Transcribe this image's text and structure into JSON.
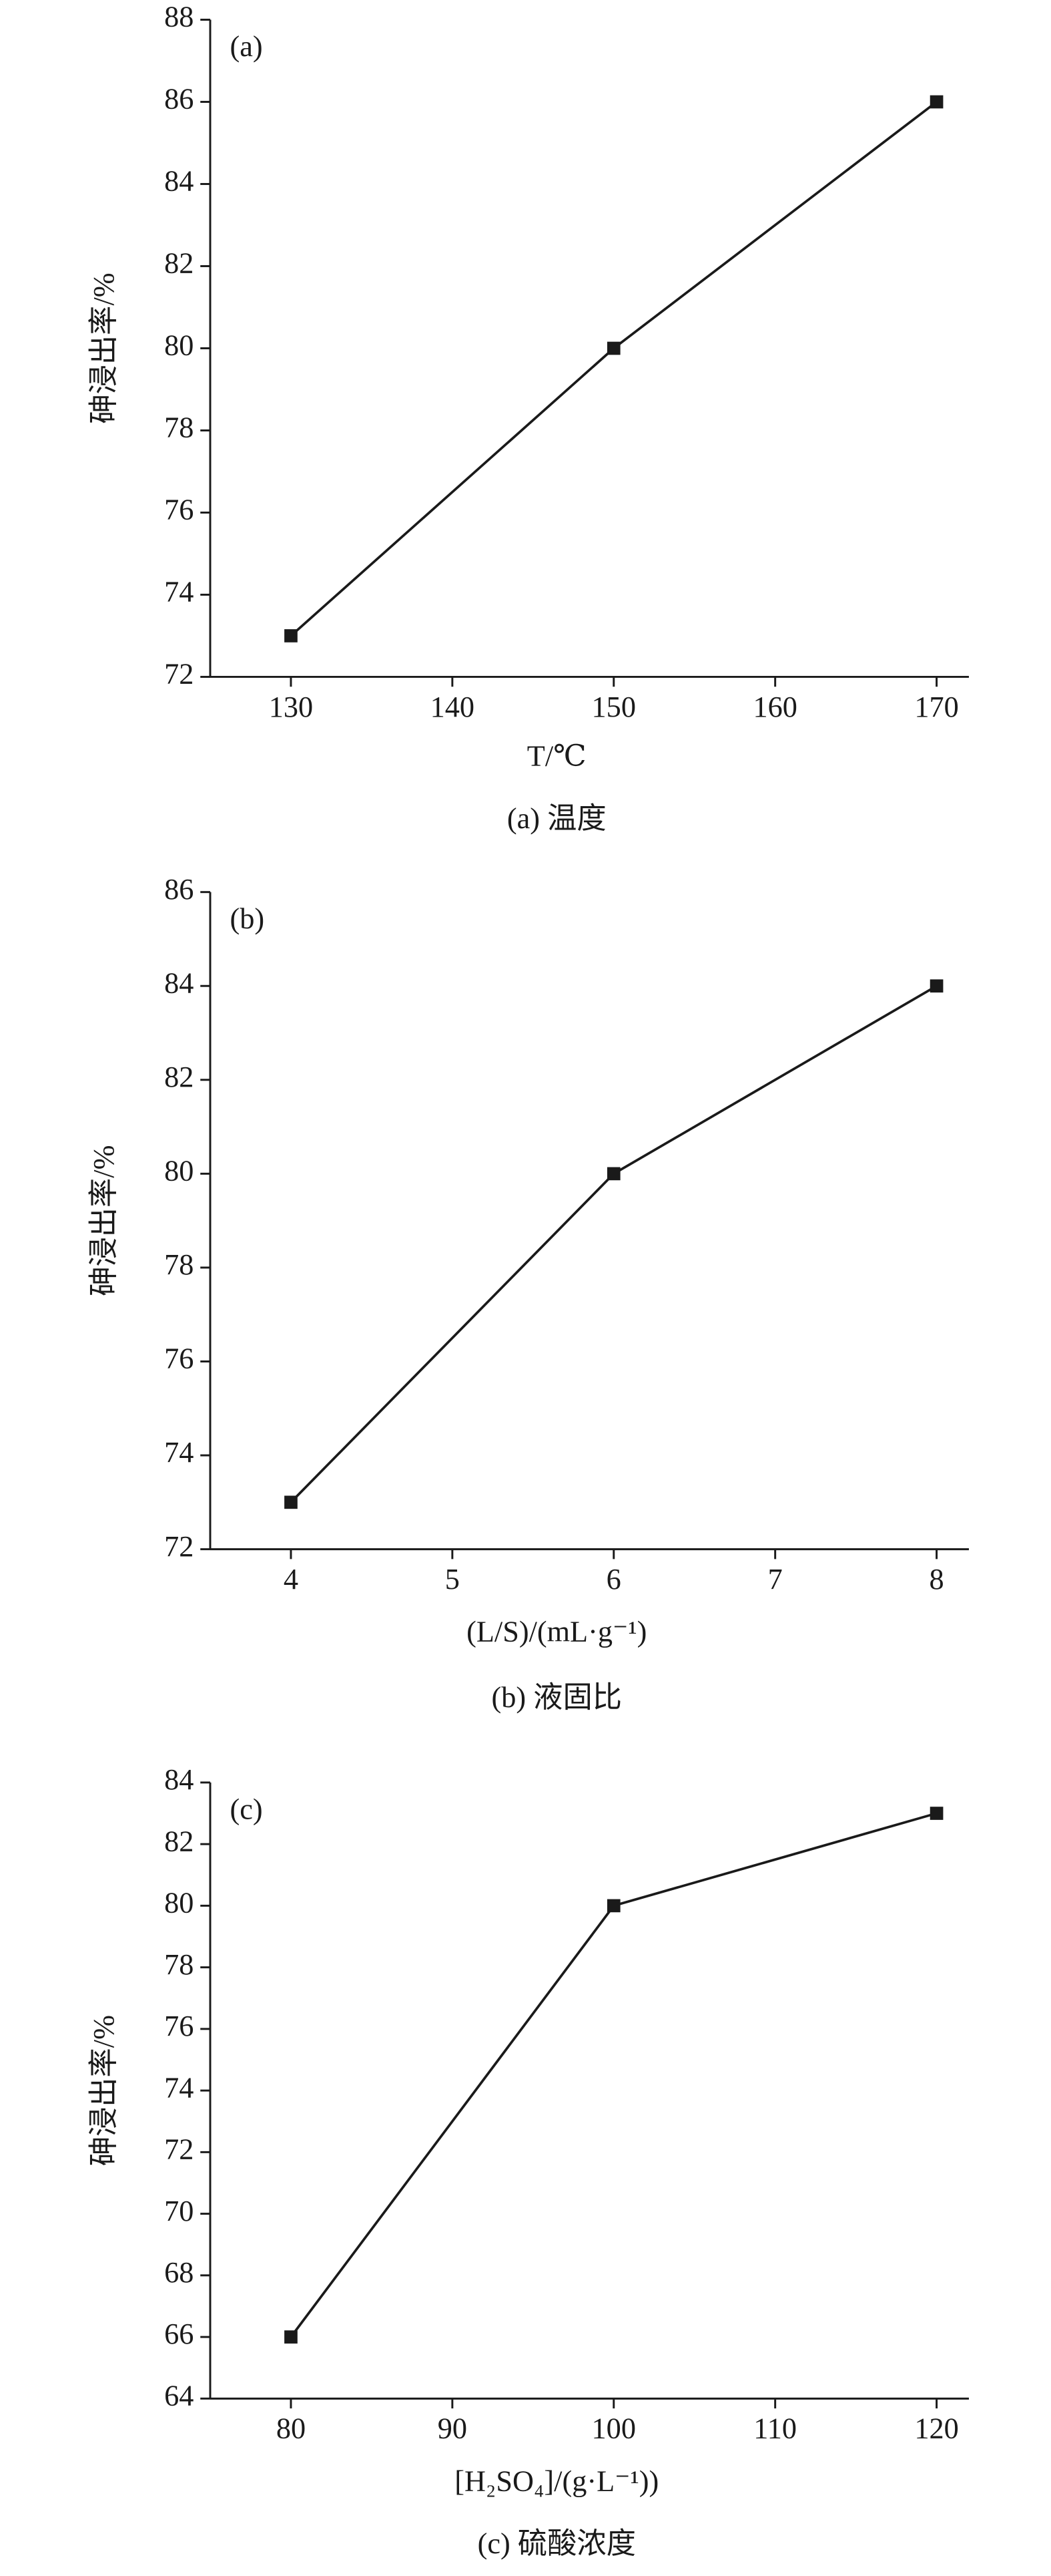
{
  "chart_data": [
    {
      "type": "line",
      "panel_label": "(a)",
      "caption": "(a) 温度",
      "xlabel": "T/℃",
      "ylabel": "砷浸出率/%",
      "x": [
        130,
        150,
        170
      ],
      "series": [
        {
          "name": "砷浸出率",
          "color": "#1a1a1a",
          "values": [
            73,
            80,
            86
          ]
        }
      ],
      "xlim": [
        125,
        172
      ],
      "xticks": [
        130,
        140,
        150,
        160,
        170
      ],
      "ylim": [
        72,
        88
      ],
      "yticks": [
        72,
        74,
        76,
        78,
        80,
        82,
        84,
        86,
        88
      ],
      "marker": "square"
    },
    {
      "type": "line",
      "panel_label": "(b)",
      "caption": "(b) 液固比",
      "xlabel": "(L/S)/(mL·g⁻¹)",
      "ylabel": "砷浸出率/%",
      "x": [
        4,
        6,
        8
      ],
      "series": [
        {
          "name": "砷浸出率",
          "color": "#1a1a1a",
          "values": [
            73,
            80,
            84
          ]
        }
      ],
      "xlim": [
        3.5,
        8.2
      ],
      "xticks": [
        4,
        5,
        6,
        7,
        8
      ],
      "ylim": [
        72,
        86
      ],
      "yticks": [
        72,
        74,
        76,
        78,
        80,
        82,
        84,
        86
      ],
      "marker": "square"
    },
    {
      "type": "line",
      "panel_label": "(c)",
      "caption": "(c) 硫酸浓度",
      "xlabel": "[H₂SO₄]/(g·L⁻¹))",
      "ylabel": "砷浸出率/%",
      "x": [
        80,
        100,
        120
      ],
      "series": [
        {
          "name": "砷浸出率",
          "color": "#1a1a1a",
          "values": [
            66,
            80,
            83
          ]
        }
      ],
      "xlim": [
        75,
        122
      ],
      "xticks": [
        80,
        90,
        100,
        110,
        120
      ],
      "ylim": [
        64,
        84
      ],
      "yticks": [
        64,
        66,
        68,
        70,
        72,
        74,
        76,
        78,
        80,
        82,
        84
      ],
      "marker": "square"
    }
  ]
}
